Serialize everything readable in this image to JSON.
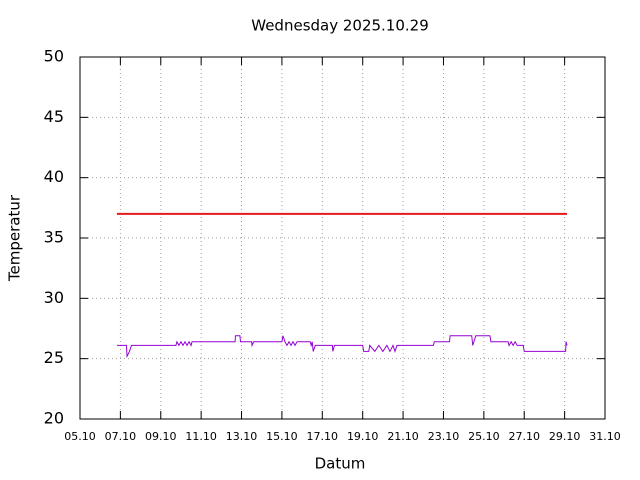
{
  "chart_data": {
    "type": "line",
    "title": "Wednesday 2025.10.29",
    "x_label": "Datum",
    "y_label": "Temperatur",
    "xlim": [
      5,
      31
    ],
    "ylim": [
      20,
      50
    ],
    "xticks": [
      {
        "value": 5,
        "label": "05.10"
      },
      {
        "value": 7,
        "label": "07.10"
      },
      {
        "value": 9,
        "label": "09.10"
      },
      {
        "value": 11,
        "label": "11.10"
      },
      {
        "value": 13,
        "label": "13.10"
      },
      {
        "value": 15,
        "label": "15.10"
      },
      {
        "value": 17,
        "label": "17.10"
      },
      {
        "value": 19,
        "label": "19.10"
      },
      {
        "value": 21,
        "label": "21.10"
      },
      {
        "value": 23,
        "label": "23.10"
      },
      {
        "value": 25,
        "label": "25.10"
      },
      {
        "value": 27,
        "label": "27.10"
      },
      {
        "value": 29,
        "label": "29.10"
      },
      {
        "value": 31,
        "label": "31.10"
      }
    ],
    "yticks": [
      20,
      25,
      30,
      35,
      40,
      45,
      50
    ],
    "grid": true,
    "series": [
      {
        "color": "#e41a1c",
        "x": [
          6.83,
          29.12
        ],
        "values": [
          37,
          37
        ]
      },
      {
        "color": "#9400d3",
        "x": [
          6.83,
          7.3,
          7.33,
          7.45,
          7.55,
          9.75,
          9.8,
          9.9,
          10.0,
          10.1,
          10.2,
          10.3,
          10.4,
          10.5,
          10.55,
          12.68,
          12.7,
          12.92,
          12.95,
          13.5,
          13.52,
          13.6,
          15.0,
          15.05,
          15.15,
          15.25,
          15.35,
          15.45,
          15.55,
          15.65,
          15.75,
          16.4,
          16.45,
          16.5,
          16.55,
          16.65,
          17.5,
          17.52,
          17.6,
          19.0,
          19.05,
          19.3,
          19.35,
          19.6,
          19.8,
          20.0,
          20.2,
          20.35,
          20.5,
          20.6,
          20.7,
          22.5,
          22.55,
          23.3,
          23.33,
          24.4,
          24.45,
          24.6,
          25.3,
          25.35,
          26.2,
          26.25,
          26.35,
          26.45,
          26.55,
          26.65,
          26.95,
          27.0,
          29.05,
          29.07,
          29.12
        ],
        "values": [
          26.1,
          26.1,
          25.2,
          25.6,
          26.1,
          26.1,
          26.4,
          26.1,
          26.4,
          26.1,
          26.4,
          26.1,
          26.4,
          26.1,
          26.4,
          26.4,
          26.9,
          26.9,
          26.4,
          26.4,
          26.1,
          26.4,
          26.4,
          26.9,
          26.4,
          26.1,
          26.4,
          26.1,
          26.4,
          26.1,
          26.4,
          26.4,
          26.1,
          26.4,
          25.6,
          26.1,
          26.1,
          25.6,
          26.1,
          26.1,
          25.6,
          25.6,
          26.1,
          25.6,
          26.1,
          25.6,
          26.1,
          25.6,
          26.1,
          25.6,
          26.1,
          26.1,
          26.4,
          26.4,
          26.9,
          26.9,
          26.1,
          26.9,
          26.9,
          26.4,
          26.4,
          26.1,
          26.4,
          26.1,
          26.4,
          26.1,
          26.1,
          25.6,
          25.6,
          26.4,
          26.1
        ]
      }
    ]
  }
}
